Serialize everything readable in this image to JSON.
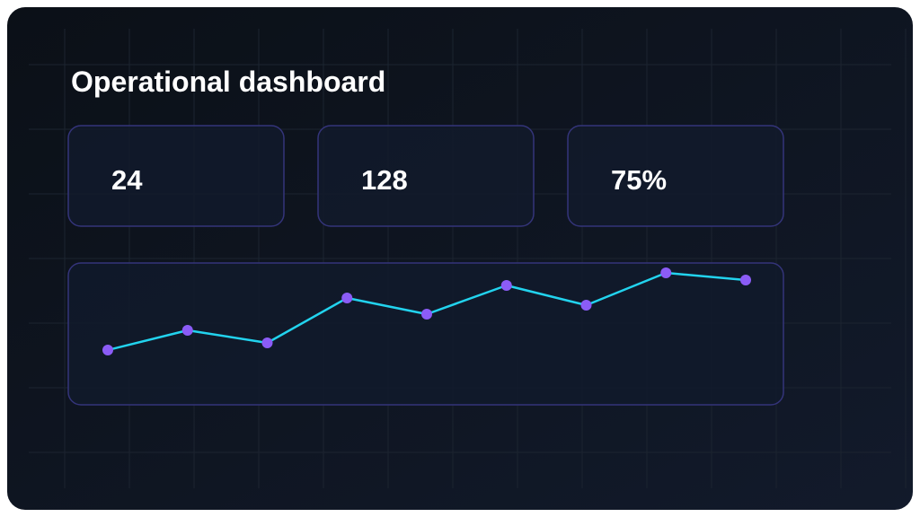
{
  "header": {
    "title": "Operational dashboard"
  },
  "kpis": [
    "24",
    "128",
    "75%"
  ],
  "chart_data": {
    "type": "line",
    "categories": [
      null,
      null,
      null,
      null,
      null,
      null,
      null,
      null,
      null
    ],
    "values": [
      10,
      32,
      18,
      68,
      50,
      82,
      60,
      96,
      88
    ],
    "ylim": [
      0,
      100
    ],
    "color": "#22d3ee",
    "marker_color": "#8b5cf6"
  }
}
